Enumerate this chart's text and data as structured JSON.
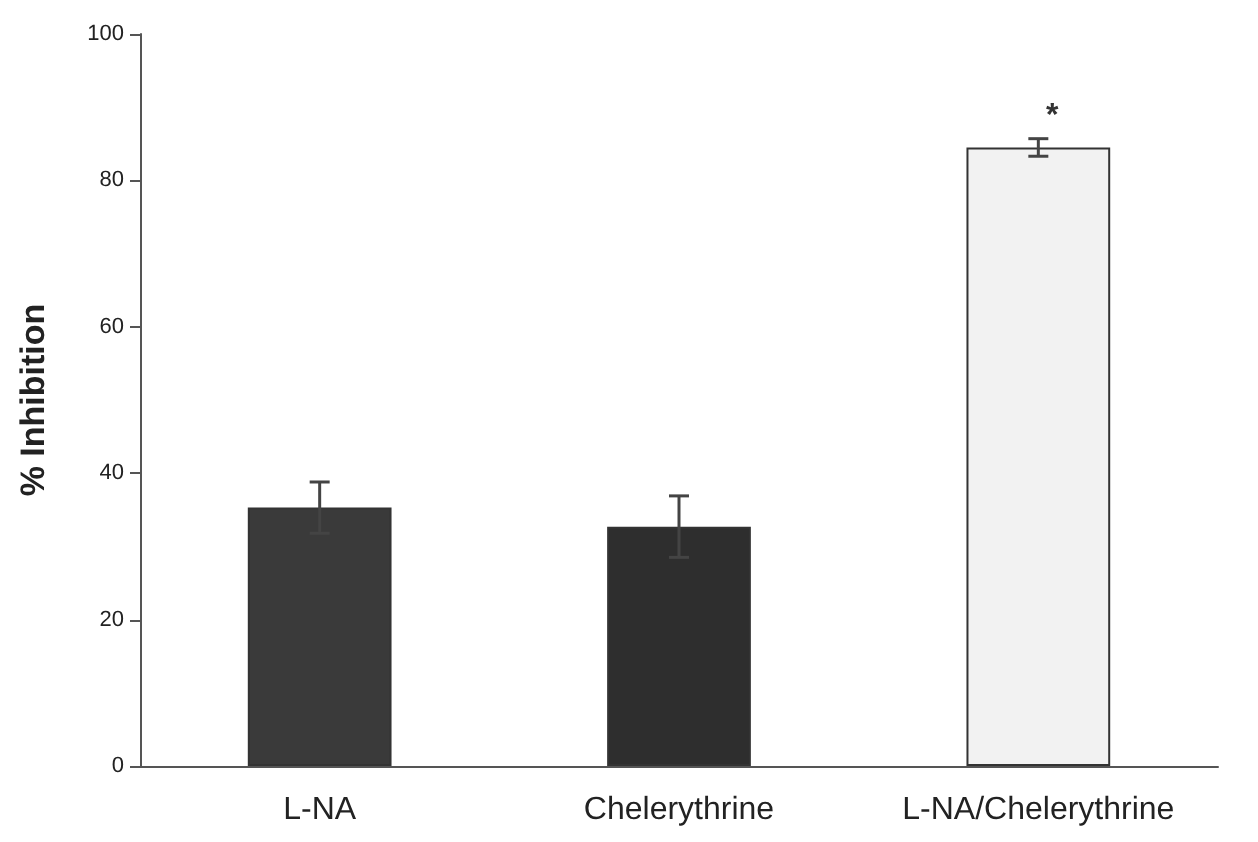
{
  "chart_data": {
    "type": "bar",
    "ylabel": "% Inhibition",
    "categories": [
      "L-NA",
      "Chelerythrine",
      "L-NA/Chelerythrine"
    ],
    "values": [
      35.3,
      32.7,
      84.5
    ],
    "errors": [
      3.5,
      4.2,
      1.2
    ],
    "colors": [
      "#3a3a3a",
      "#2e2e2e",
      "#f2f2f2"
    ],
    "ylim": [
      0,
      100
    ],
    "yticks": [
      0,
      20,
      40,
      60,
      80,
      100
    ],
    "annotations": [
      "*"
    ],
    "grid": false
  }
}
